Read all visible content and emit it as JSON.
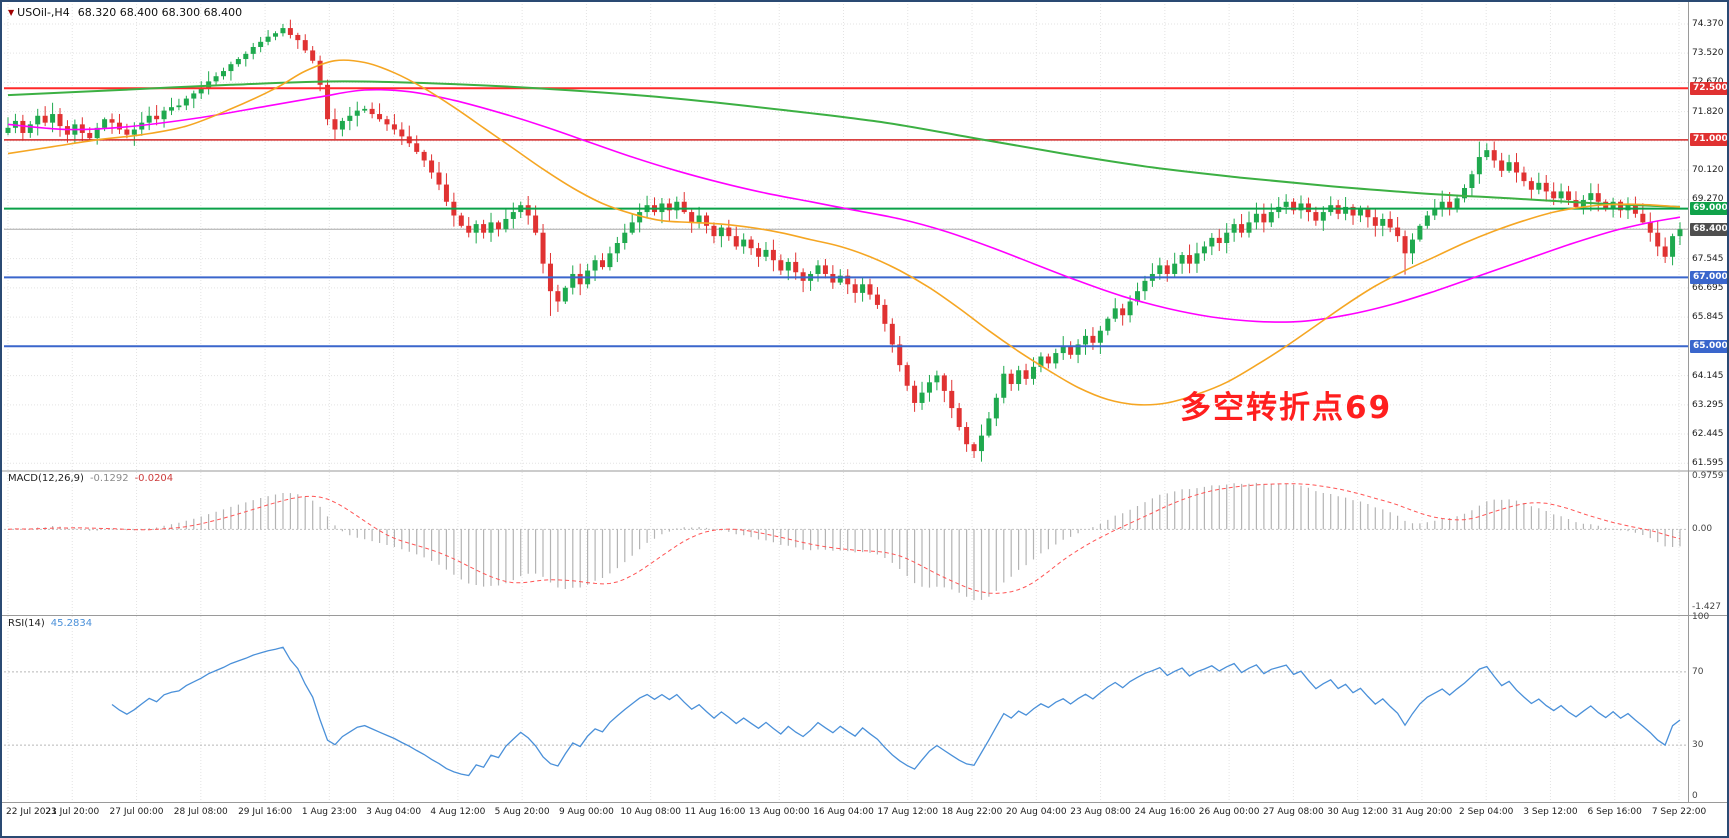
{
  "title": {
    "symbol_tf": "USOil-,H4",
    "ohlc": "68.320 68.400 68.300 68.400"
  },
  "annotation": {
    "text": "多空转折点69",
    "color": "#ff1f1f"
  },
  "colors": {
    "bull": "#1fa94e",
    "bear": "#e03232",
    "ma_slow": "#3cb043",
    "ma_mid": "#ff00ff",
    "ma_fast": "#f5a623",
    "macd_hist": "#b4b4b4",
    "macd_signal": "#ff5555",
    "rsi": "#4a90d9",
    "grid": "#e3e3e3",
    "separator": "#9a9a9a",
    "current_price_line": "#aaaaaa"
  },
  "chart_data": {
    "type": "candlestick",
    "symbol": "USOil-",
    "timeframe": "H4",
    "current_bar": {
      "open": 68.32,
      "high": 68.4,
      "low": 68.3,
      "close": 68.4
    },
    "price_axis": {
      "range": [
        61.4,
        74.95
      ],
      "ticks": [
        74.37,
        73.52,
        72.67,
        71.82,
        70.97,
        70.12,
        69.27,
        68.42,
        67.545,
        66.695,
        65.845,
        64.995,
        64.145,
        63.295,
        62.445,
        61.595
      ]
    },
    "badges": [
      {
        "label": "72.500",
        "price": 72.5,
        "bg": "#e03131"
      },
      {
        "label": "71.000",
        "price": 71.0,
        "bg": "#e03131"
      },
      {
        "label": "69.000",
        "price": 69.0,
        "bg": "#10a24a"
      },
      {
        "label": "68.400",
        "price": 68.4,
        "bg": "#4f4f4f"
      },
      {
        "label": "67.000",
        "price": 67.0,
        "bg": "#3a66cc"
      },
      {
        "label": "65.000",
        "price": 65.0,
        "bg": "#3a66cc"
      }
    ],
    "hlines": [
      {
        "price": 72.5,
        "color": "#ff2a2a",
        "width": 2
      },
      {
        "price": 71.0,
        "color": "#d42626",
        "width": 1.5
      },
      {
        "price": 69.0,
        "color": "#0aa148",
        "width": 2
      },
      {
        "price": 67.0,
        "color": "#3a66cc",
        "width": 2
      },
      {
        "price": 65.0,
        "color": "#3a66cc",
        "width": 2
      }
    ],
    "current_price_line": 68.4,
    "time_axis": [
      "22 Jul 2021",
      "23 Jul 20:00",
      "27 Jul 00:00",
      "28 Jul 08:00",
      "29 Jul 16:00",
      "1 Aug 23:00",
      "3 Aug 04:00",
      "4 Aug 12:00",
      "5 Aug 20:00",
      "9 Aug 00:00",
      "10 Aug 08:00",
      "11 Aug 16:00",
      "13 Aug 00:00",
      "16 Aug 04:00",
      "17 Aug 12:00",
      "18 Aug 22:00",
      "20 Aug 04:00",
      "23 Aug 08:00",
      "24 Aug 16:00",
      "26 Aug 00:00",
      "27 Aug 08:00",
      "30 Aug 12:00",
      "31 Aug 20:00",
      "2 Sep 04:00",
      "3 Sep 12:00",
      "6 Sep 16:00",
      "7 Sep 22:00"
    ],
    "candles": {
      "first_open": 71.2,
      "close": [
        71.35,
        71.55,
        71.2,
        71.45,
        71.7,
        71.5,
        71.75,
        71.4,
        71.15,
        71.45,
        71.2,
        71.05,
        71.35,
        71.6,
        71.5,
        71.3,
        71.15,
        71.3,
        71.5,
        71.7,
        71.6,
        71.85,
        71.95,
        72.0,
        72.2,
        72.35,
        72.5,
        72.7,
        72.85,
        73.0,
        73.2,
        73.35,
        73.5,
        73.7,
        73.85,
        74.0,
        74.1,
        74.25,
        74.05,
        73.9,
        73.6,
        73.3,
        72.6,
        71.6,
        71.3,
        71.55,
        71.7,
        71.85,
        71.9,
        71.75,
        71.6,
        71.45,
        71.3,
        71.1,
        70.9,
        70.65,
        70.4,
        70.05,
        69.7,
        69.2,
        68.8,
        68.5,
        68.3,
        68.55,
        68.3,
        68.6,
        68.4,
        68.7,
        68.9,
        69.1,
        68.8,
        68.3,
        67.4,
        66.6,
        66.3,
        66.7,
        67.1,
        66.8,
        67.2,
        67.5,
        67.3,
        67.7,
        68.0,
        68.3,
        68.6,
        68.9,
        69.1,
        68.9,
        69.15,
        68.95,
        69.2,
        68.9,
        68.6,
        68.8,
        68.5,
        68.2,
        68.45,
        68.2,
        67.9,
        68.1,
        67.85,
        67.6,
        67.8,
        67.5,
        67.2,
        67.45,
        67.15,
        66.9,
        67.1,
        67.35,
        67.1,
        66.85,
        67.05,
        66.8,
        66.55,
        66.8,
        66.5,
        66.2,
        65.65,
        65.05,
        64.45,
        63.85,
        63.35,
        63.65,
        63.95,
        64.15,
        63.7,
        63.2,
        62.65,
        62.15,
        61.95,
        62.4,
        62.9,
        63.5,
        64.2,
        63.9,
        64.3,
        64.05,
        64.4,
        64.7,
        64.5,
        64.8,
        65.0,
        64.75,
        65.05,
        65.3,
        65.1,
        65.45,
        65.8,
        66.1,
        65.9,
        66.3,
        66.6,
        66.9,
        67.1,
        67.35,
        67.1,
        67.4,
        67.65,
        67.4,
        67.7,
        67.9,
        68.15,
        68.0,
        68.3,
        68.55,
        68.3,
        68.6,
        68.85,
        68.6,
        68.9,
        69.05,
        69.2,
        68.95,
        69.15,
        68.9,
        68.65,
        68.9,
        69.1,
        68.85,
        69.05,
        68.8,
        69.0,
        68.75,
        68.5,
        68.7,
        68.45,
        68.2,
        67.7,
        68.1,
        68.5,
        68.8,
        69.0,
        69.2,
        69.0,
        69.3,
        69.6,
        70.0,
        70.5,
        70.7,
        70.4,
        70.1,
        70.35,
        70.05,
        69.8,
        69.55,
        69.75,
        69.5,
        69.3,
        69.5,
        69.25,
        69.05,
        69.25,
        69.45,
        69.2,
        69.0,
        69.2,
        68.95,
        69.1,
        68.85,
        68.6,
        68.3,
        67.9,
        67.6,
        68.2,
        68.4
      ],
      "wick_extremes": {
        "37": {
          "h": 74.37
        },
        "42": {
          "h": 73.45
        },
        "73": {
          "l": 65.88
        },
        "90": {
          "h": 69.35
        },
        "130": {
          "l": 61.75
        },
        "172": {
          "h": 69.42
        },
        "188": {
          "l": 67.08
        },
        "198": {
          "h": 70.95
        },
        "199": {
          "h": 70.9
        },
        "223": {
          "l": 67.42
        }
      }
    },
    "moving_averages": [
      {
        "name": "ma-slow-green",
        "color_key": "ma_slow",
        "width": 2,
        "points": [
          [
            0,
            72.3
          ],
          [
            15,
            72.45
          ],
          [
            30,
            72.6
          ],
          [
            45,
            72.7
          ],
          [
            60,
            72.62
          ],
          [
            75,
            72.45
          ],
          [
            90,
            72.2
          ],
          [
            105,
            71.85
          ],
          [
            118,
            71.5
          ],
          [
            130,
            71.05
          ],
          [
            142,
            70.6
          ],
          [
            154,
            70.2
          ],
          [
            166,
            69.9
          ],
          [
            178,
            69.65
          ],
          [
            190,
            69.45
          ],
          [
            202,
            69.3
          ],
          [
            214,
            69.15
          ],
          [
            225,
            69.05
          ]
        ]
      },
      {
        "name": "ma-mid-magenta",
        "color_key": "ma_mid",
        "width": 1.6,
        "points": [
          [
            0,
            71.45
          ],
          [
            8,
            71.3
          ],
          [
            16,
            71.38
          ],
          [
            26,
            71.65
          ],
          [
            34,
            71.95
          ],
          [
            42,
            72.25
          ],
          [
            48,
            72.45
          ],
          [
            54,
            72.4
          ],
          [
            60,
            72.15
          ],
          [
            66,
            71.8
          ],
          [
            72,
            71.4
          ],
          [
            78,
            70.95
          ],
          [
            84,
            70.5
          ],
          [
            90,
            70.1
          ],
          [
            96,
            69.75
          ],
          [
            102,
            69.45
          ],
          [
            108,
            69.2
          ],
          [
            114,
            68.95
          ],
          [
            120,
            68.7
          ],
          [
            126,
            68.35
          ],
          [
            132,
            67.9
          ],
          [
            138,
            67.4
          ],
          [
            144,
            66.9
          ],
          [
            150,
            66.45
          ],
          [
            156,
            66.1
          ],
          [
            162,
            65.85
          ],
          [
            168,
            65.72
          ],
          [
            174,
            65.72
          ],
          [
            180,
            65.9
          ],
          [
            186,
            66.2
          ],
          [
            192,
            66.6
          ],
          [
            198,
            67.05
          ],
          [
            204,
            67.5
          ],
          [
            210,
            67.95
          ],
          [
            216,
            68.35
          ],
          [
            221,
            68.6
          ],
          [
            225,
            68.75
          ]
        ]
      },
      {
        "name": "ma-fast-orange",
        "color_key": "ma_fast",
        "width": 1.6,
        "points": [
          [
            0,
            70.6
          ],
          [
            6,
            70.8
          ],
          [
            12,
            71.0
          ],
          [
            18,
            71.15
          ],
          [
            24,
            71.4
          ],
          [
            30,
            71.9
          ],
          [
            36,
            72.5
          ],
          [
            40,
            73.0
          ],
          [
            44,
            73.3
          ],
          [
            48,
            73.25
          ],
          [
            52,
            72.95
          ],
          [
            56,
            72.5
          ],
          [
            60,
            71.95
          ],
          [
            64,
            71.35
          ],
          [
            68,
            70.75
          ],
          [
            72,
            70.15
          ],
          [
            76,
            69.6
          ],
          [
            80,
            69.15
          ],
          [
            84,
            68.85
          ],
          [
            88,
            68.65
          ],
          [
            92,
            68.6
          ],
          [
            96,
            68.55
          ],
          [
            100,
            68.45
          ],
          [
            104,
            68.3
          ],
          [
            108,
            68.1
          ],
          [
            112,
            67.9
          ],
          [
            116,
            67.6
          ],
          [
            120,
            67.2
          ],
          [
            124,
            66.7
          ],
          [
            128,
            66.1
          ],
          [
            132,
            65.45
          ],
          [
            136,
            64.85
          ],
          [
            140,
            64.3
          ],
          [
            144,
            63.8
          ],
          [
            148,
            63.45
          ],
          [
            152,
            63.3
          ],
          [
            156,
            63.35
          ],
          [
            160,
            63.6
          ],
          [
            164,
            63.95
          ],
          [
            168,
            64.45
          ],
          [
            172,
            65.0
          ],
          [
            176,
            65.6
          ],
          [
            180,
            66.2
          ],
          [
            184,
            66.75
          ],
          [
            188,
            67.2
          ],
          [
            192,
            67.6
          ],
          [
            196,
            68.0
          ],
          [
            200,
            68.35
          ],
          [
            204,
            68.65
          ],
          [
            208,
            68.9
          ],
          [
            212,
            69.05
          ],
          [
            216,
            69.12
          ],
          [
            220,
            69.12
          ],
          [
            225,
            69.05
          ]
        ]
      }
    ],
    "macd": {
      "label": "MACD(12,26,9)",
      "value_main": "-0.1292",
      "value_signal": "-0.0204",
      "fast": 12,
      "slow": 26,
      "signal": 9,
      "range": [
        -1.55,
        1.05
      ],
      "axis": [
        {
          "v": 0.9759,
          "label": "0.9759"
        },
        {
          "v": 0,
          "label": "0.00"
        },
        {
          "v": -1.427,
          "label": "-1.427"
        }
      ]
    },
    "rsi": {
      "label": "RSI(14)",
      "value": "45.2834",
      "period": 14,
      "levels": [
        70,
        30
      ],
      "range": [
        0,
        100
      ],
      "axis": [
        {
          "v": 100,
          "label": "100"
        },
        {
          "v": 70,
          "label": "70"
        },
        {
          "v": 30,
          "label": "30"
        },
        {
          "v": 0,
          "label": "0"
        }
      ]
    }
  }
}
